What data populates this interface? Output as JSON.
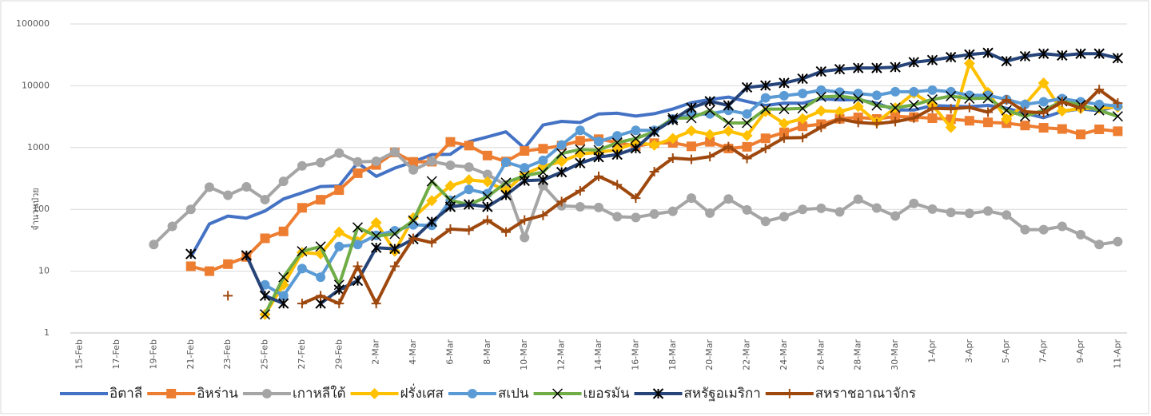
{
  "chart_data": {
    "type": "line",
    "log_scale": true,
    "grid": true,
    "legend": "bottom",
    "y_label": "จำนวนป่วย",
    "categories": [
      "15-Feb",
      null,
      "17-Feb",
      null,
      "19-Feb",
      null,
      "21-Feb",
      null,
      "23-Feb",
      null,
      "25-Feb",
      null,
      "27-Feb",
      null,
      "29-Feb",
      null,
      "2-Mar",
      null,
      "4-Mar",
      null,
      "6-Mar",
      null,
      "8-Mar",
      null,
      "10-Mar",
      null,
      "12-Mar",
      null,
      "14-Mar",
      null,
      "16-Mar",
      null,
      "18-Mar",
      null,
      "20-Mar",
      null,
      "22-Mar",
      null,
      "24-Mar",
      null,
      "26-Mar",
      null,
      "28-Mar",
      null,
      "30-Mar",
      null,
      "1-Apr",
      null,
      "3-Apr",
      null,
      "5-Apr",
      null,
      "7-Apr",
      null,
      "9-Apr",
      null,
      "11-Apr"
    ],
    "ylim": [
      1,
      100000
    ],
    "yticks": [
      1,
      10,
      100,
      1000,
      10000,
      100000
    ],
    "series": [
      {
        "name": "อิตาลี",
        "color": "#4472c4",
        "marker": "none",
        "values": [
          null,
          null,
          null,
          null,
          null,
          null,
          17,
          58,
          78,
          72,
          94,
          147,
          185,
          234,
          239,
          566,
          342,
          466,
          587,
          769,
          778,
          1247,
          1492,
          1797,
          977,
          2313,
          2651,
          2547,
          3497,
          3590,
          3233,
          3526,
          4207,
          5322,
          5986,
          6557,
          5560,
          4789,
          5249,
          5210,
          6203,
          5909,
          5974,
          5217,
          4050,
          4053,
          4782,
          4668,
          4585,
          4805,
          4316,
          3599,
          3039,
          3836,
          4204,
          3951,
          4694
        ]
      },
      {
        "name": "อิหร่าน",
        "color": "#ed7d31",
        "marker": "square",
        "values": [
          null,
          null,
          null,
          null,
          null,
          null,
          12,
          10,
          13,
          17,
          34,
          44,
          106,
          143,
          205,
          385,
          523,
          835,
          586,
          591,
          1234,
          1076,
          743,
          595,
          881,
          958,
          1075,
          1289,
          1365,
          1209,
          1053,
          1178,
          1192,
          1046,
          1237,
          966,
          1028,
          1411,
          1762,
          2206,
          2389,
          2926,
          3076,
          2901,
          3186,
          3110,
          2987,
          2875,
          2715,
          2560,
          2483,
          2274,
          2089,
          1997,
          1634,
          1972,
          1837
        ]
      },
      {
        "name": "เกาหลีใต้",
        "color": "#a5a5a5",
        "marker": "circle",
        "values": [
          null,
          null,
          null,
          null,
          27,
          53,
          100,
          229,
          169,
          231,
          144,
          284,
          505,
          571,
          813,
          586,
          599,
          851,
          435,
          600,
          516,
          483,
          367,
          248,
          35,
          242,
          114,
          110,
          107,
          76,
          74,
          84,
          93,
          152,
          87,
          147,
          98,
          64,
          76,
          100,
          104,
          91,
          146,
          105,
          78,
          125,
          101,
          89,
          86,
          94,
          81,
          47,
          47,
          53,
          39,
          27,
          30
        ]
      },
      {
        "name": "ฝรั่งเศส",
        "color": "#ffc000",
        "marker": "diamond",
        "values": [
          null,
          null,
          null,
          null,
          null,
          null,
          null,
          null,
          null,
          null,
          2,
          6,
          20,
          19,
          43,
          30,
          61,
          21,
          73,
          138,
          240,
          300,
          280,
          200,
          372,
          497,
          595,
          785,
          838,
          924,
          1210,
          1097,
          1404,
          1861,
          1617,
          1847,
          1559,
          3838,
          2446,
          2931,
          3922,
          3809,
          4611,
          2599,
          4376,
          7578,
          4861,
          2116,
          23060,
          7788,
          2900,
          5000,
          11059,
          3900,
          4286,
          4342,
          4500
        ]
      },
      {
        "name": "สเปน",
        "color": "#5b9bd5",
        "marker": "circle",
        "values": [
          null,
          null,
          null,
          null,
          null,
          null,
          null,
          null,
          null,
          null,
          6,
          4,
          11,
          8,
          25,
          27,
          38,
          45,
          56,
          55,
          140,
          210,
          180,
          580,
          470,
          620,
          1100,
          1900,
          1250,
          1550,
          1900,
          1900,
          2900,
          3400,
          3500,
          4000,
          3500,
          6368,
          6900,
          7500,
          8500,
          7900,
          7500,
          7000,
          8000,
          8000,
          8500,
          8000,
          7000,
          7000,
          6000,
          5000,
          5500,
          6200,
          5500,
          5000,
          4700
        ]
      },
      {
        "name": "เยอรมัน",
        "color": "#70ad47",
        "marker": "x",
        "values": [
          null,
          null,
          null,
          null,
          null,
          null,
          null,
          null,
          null,
          null,
          2,
          8,
          21,
          25,
          6,
          51,
          37,
          40,
          66,
          285,
          140,
          120,
          160,
          270,
          350,
          400,
          800,
          930,
          910,
          1200,
          1400,
          1800,
          3000,
          3000,
          4000,
          2500,
          2500,
          4200,
          4200,
          4300,
          6600,
          6800,
          6200,
          4800,
          4400,
          4900,
          6000,
          6800,
          6200,
          6300,
          4000,
          3200,
          4000,
          5600,
          4900,
          4000,
          3200
        ]
      },
      {
        "name": "สหรัฐอเมริกา",
        "color": "#264478",
        "marker": "star",
        "values": [
          null,
          null,
          null,
          null,
          null,
          null,
          19,
          null,
          null,
          18,
          4,
          3,
          null,
          3,
          5,
          7,
          24,
          23,
          33,
          63,
          110,
          120,
          110,
          170,
          290,
          300,
          400,
          560,
          700,
          770,
          970,
          1800,
          2800,
          4400,
          5600,
          4800,
          9400,
          10100,
          11100,
          13000,
          17000,
          18500,
          19400,
          19400,
          20000,
          24000,
          26000,
          29000,
          32000,
          34000,
          25000,
          30000,
          33000,
          31000,
          33000,
          33000,
          28000
        ]
      },
      {
        "name": "สหราชอาณาจักร",
        "color": "#9e480e",
        "marker": "plus",
        "values": [
          null,
          null,
          null,
          null,
          null,
          null,
          null,
          null,
          4,
          null,
          null,
          null,
          3,
          4,
          3,
          12,
          3,
          12,
          34,
          29,
          48,
          46,
          67,
          43,
          67,
          80,
          134,
          200,
          342,
          250,
          152,
          407,
          676,
          643,
          714,
          1035,
          665,
          967,
          1427,
          1452,
          2129,
          2885,
          2546,
          2433,
          2619,
          3009,
          4324,
          4244,
          4450,
          3735,
          5903,
          3802,
          3634,
          5491,
          4344,
          8681,
          5233
        ]
      }
    ]
  }
}
